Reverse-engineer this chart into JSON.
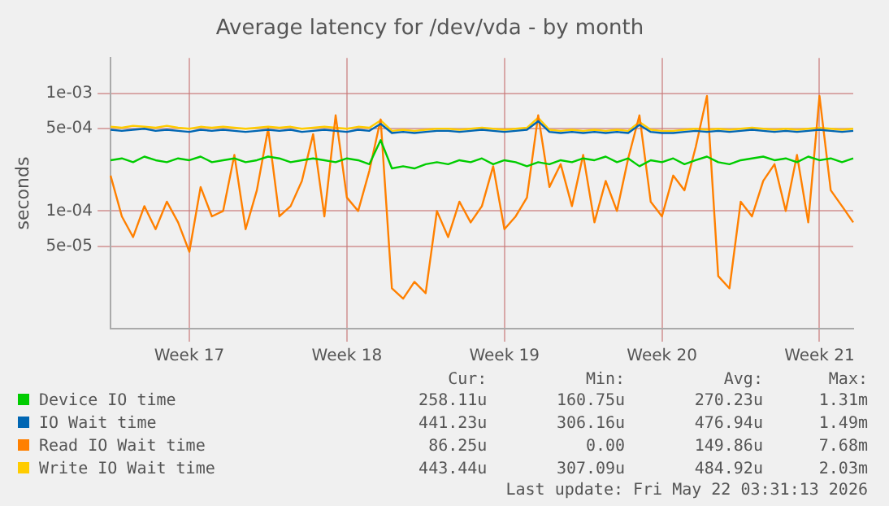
{
  "chart_data": {
    "type": "line",
    "title": "Average latency for /dev/vda - by month",
    "ylabel": "seconds",
    "log": "y",
    "grid": true,
    "legend": "bottom",
    "marker": "none",
    "line_style": "solid",
    "categories": [
      null,
      null,
      null,
      null,
      null,
      null,
      null,
      "Week 17",
      null,
      null,
      null,
      null,
      null,
      null,
      null,
      null,
      null,
      null,
      null,
      null,
      null,
      "Week 18",
      null,
      null,
      null,
      null,
      null,
      null,
      null,
      null,
      null,
      null,
      null,
      null,
      null,
      "Week 19",
      null,
      null,
      null,
      null,
      null,
      null,
      null,
      null,
      null,
      null,
      null,
      null,
      null,
      "Week 20",
      null,
      null,
      null,
      null,
      null,
      null,
      null,
      null,
      null,
      null,
      null,
      null,
      null,
      "Week 21",
      null,
      null,
      null
    ],
    "ylim": [
      1e-05,
      0.002
    ],
    "yticks": [
      {
        "value": 5e-05,
        "label": "5e-05"
      },
      {
        "value": 0.0001,
        "label": "1e-04"
      },
      {
        "value": 0.0005,
        "label": "5e-04"
      },
      {
        "value": 0.001,
        "label": "1e-03"
      }
    ],
    "series": [
      {
        "name": "Device IO time",
        "color": "#00cc00",
        "values": [
          0.00027,
          0.00028,
          0.00026,
          0.00029,
          0.00027,
          0.00026,
          0.00028,
          0.00027,
          0.00029,
          0.00026,
          0.00027,
          0.00028,
          0.00026,
          0.00027,
          0.00029,
          0.00028,
          0.00026,
          0.00027,
          0.00028,
          0.00027,
          0.00026,
          0.00028,
          0.00027,
          0.00025,
          0.0004,
          0.00023,
          0.00024,
          0.00023,
          0.00025,
          0.00026,
          0.00025,
          0.00027,
          0.00026,
          0.00028,
          0.00025,
          0.00027,
          0.00026,
          0.00024,
          0.00026,
          0.00025,
          0.00027,
          0.00026,
          0.00028,
          0.00027,
          0.00029,
          0.00026,
          0.00028,
          0.00024,
          0.00027,
          0.00026,
          0.00028,
          0.00025,
          0.00027,
          0.00029,
          0.00026,
          0.00025,
          0.00027,
          0.00028,
          0.00029,
          0.00027,
          0.00028,
          0.00026,
          0.00029,
          0.00027,
          0.00028,
          0.00026,
          0.00028
        ]
      },
      {
        "name": "IO Wait time",
        "color": "#0066b3",
        "values": [
          0.00049,
          0.00048,
          0.00049,
          0.0005,
          0.00048,
          0.00049,
          0.00048,
          0.00047,
          0.00049,
          0.00048,
          0.00049,
          0.00048,
          0.00047,
          0.00048,
          0.00049,
          0.00048,
          0.00049,
          0.00047,
          0.00048,
          0.00049,
          0.00048,
          0.00047,
          0.00049,
          0.00048,
          0.00055,
          0.00046,
          0.00047,
          0.00046,
          0.00047,
          0.00048,
          0.00048,
          0.00047,
          0.00048,
          0.00049,
          0.00048,
          0.00047,
          0.00048,
          0.00049,
          0.00058,
          0.00047,
          0.00046,
          0.00047,
          0.00046,
          0.00047,
          0.00046,
          0.00047,
          0.00046,
          0.00054,
          0.00047,
          0.00046,
          0.00046,
          0.00047,
          0.00048,
          0.00047,
          0.00048,
          0.00047,
          0.00048,
          0.00049,
          0.00048,
          0.00047,
          0.00048,
          0.00047,
          0.00048,
          0.00049,
          0.00048,
          0.00047,
          0.00048
        ]
      },
      {
        "name": "Read IO Wait time",
        "color": "#ff8000",
        "values": [
          0.0002,
          9e-05,
          6e-05,
          0.00011,
          7e-05,
          0.00012,
          8e-05,
          4.5e-05,
          0.00016,
          9e-05,
          0.0001,
          0.0003,
          7e-05,
          0.00015,
          0.0005,
          9e-05,
          0.00011,
          0.00018,
          0.00045,
          9e-05,
          0.00065,
          0.00013,
          0.0001,
          0.00022,
          0.0006,
          2.2e-05,
          1.8e-05,
          2.5e-05,
          2e-05,
          0.0001,
          6e-05,
          0.00012,
          8e-05,
          0.00011,
          0.00024,
          7e-05,
          9e-05,
          0.00013,
          0.00065,
          0.00016,
          0.00025,
          0.00011,
          0.0003,
          8e-05,
          0.00018,
          0.0001,
          0.00028,
          0.00065,
          0.00012,
          9e-05,
          0.0002,
          0.00015,
          0.00035,
          0.00095,
          2.8e-05,
          2.2e-05,
          0.00012,
          9e-05,
          0.00018,
          0.00025,
          0.0001,
          0.0003,
          8e-05,
          0.00095,
          0.00015,
          0.00011,
          8e-05
        ]
      },
      {
        "name": "Write IO Wait time",
        "color": "#ffcc00",
        "values": [
          0.00052,
          0.00051,
          0.00053,
          0.00052,
          0.00051,
          0.00053,
          0.00051,
          0.0005,
          0.00052,
          0.00051,
          0.00052,
          0.00051,
          0.0005,
          0.00051,
          0.00052,
          0.00051,
          0.00052,
          0.0005,
          0.00051,
          0.00052,
          0.00051,
          0.0005,
          0.00052,
          0.00051,
          0.00059,
          0.00048,
          0.00049,
          0.00048,
          0.00049,
          0.0005,
          0.0005,
          0.00049,
          0.0005,
          0.00051,
          0.0005,
          0.00049,
          0.0005,
          0.00051,
          0.00062,
          0.00049,
          0.00048,
          0.00049,
          0.00048,
          0.00049,
          0.00048,
          0.00049,
          0.00048,
          0.00057,
          0.00049,
          0.00048,
          0.00048,
          0.00049,
          0.0005,
          0.00049,
          0.0005,
          0.00049,
          0.0005,
          0.00051,
          0.0005,
          0.00049,
          0.0005,
          0.00049,
          0.0005,
          0.00051,
          0.0005,
          0.00049,
          0.0005
        ]
      }
    ],
    "annotations": [
      "Cur:",
      "Min:",
      "Avg:",
      "Max:",
      "258.11u",
      "160.75u",
      "270.23u",
      "1.31m",
      "441.23u",
      "306.16u",
      "476.94u",
      "1.49m",
      "86.25u",
      "0.00",
      "149.86u",
      "7.68m",
      "443.44u",
      "307.09u",
      "484.92u",
      "2.03m",
      "Last update: Fri May 22 03:31:13 2026"
    ]
  }
}
